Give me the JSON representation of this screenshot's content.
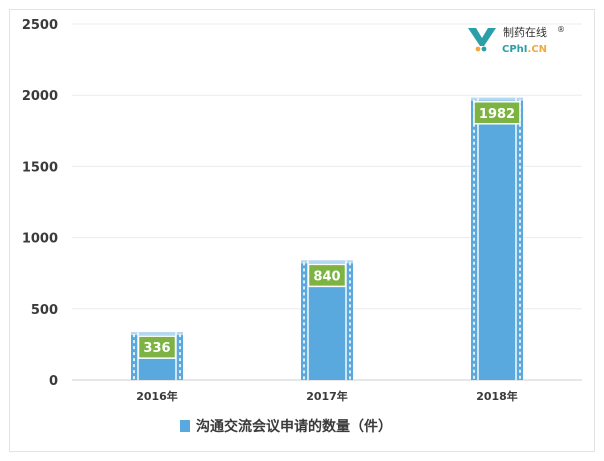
{
  "chart_data": {
    "type": "bar",
    "categories": [
      "2016年",
      "2017年",
      "2018年"
    ],
    "series": [
      {
        "name": "沟通交流会议申请的数量（件）",
        "values": [
          336,
          840,
          1982
        ]
      }
    ],
    "data_labels": [
      "336",
      "840",
      "1982"
    ],
    "yticks": [
      "0",
      "500",
      "1000",
      "1500",
      "2000",
      "2500"
    ],
    "ylim": [
      0,
      2500
    ],
    "grid": true,
    "legend_position": "bottom",
    "bar_color": "#5aa9de",
    "label_color": "#7cb342"
  },
  "logo": {
    "cn": "制药在线",
    "reg": "®",
    "en_a": "CPhI",
    "en_b": ".CN",
    "icon": "cphi-logo-icon"
  }
}
